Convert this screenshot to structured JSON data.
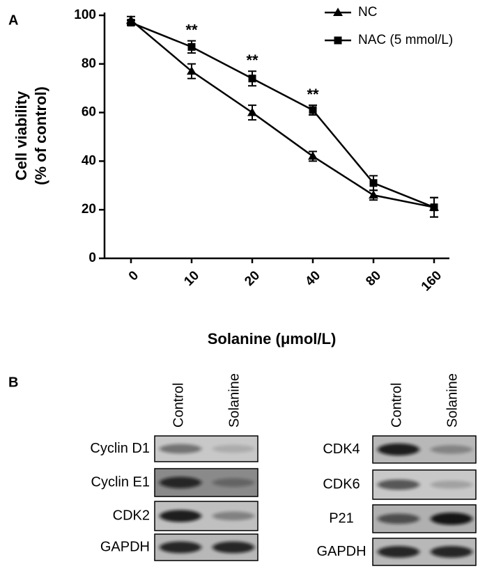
{
  "chart_data": {
    "type": "line",
    "panel_label": "A",
    "xlabel": "Solanine (μmol/L)",
    "ylabel": [
      "Cell viability",
      "(% of control)"
    ],
    "categories": [
      "0",
      "10",
      "20",
      "40",
      "80",
      "160"
    ],
    "series": [
      {
        "name": "NC",
        "color": "#000000",
        "marker": "triangle",
        "values": [
          98,
          77,
          60,
          42,
          26,
          21
        ],
        "errors": [
          1.5,
          3,
          3,
          2,
          2,
          4
        ]
      },
      {
        "name": "NAC (5 mmol/L)",
        "color": "#000000",
        "marker": "square",
        "values": [
          97,
          87,
          74,
          61,
          31,
          21
        ],
        "errors": [
          1,
          2.5,
          3,
          2,
          3,
          4
        ]
      }
    ],
    "significance": [
      null,
      "**",
      "**",
      "**",
      null,
      null
    ],
    "ylim": [
      0,
      100
    ],
    "yticks": [
      0,
      20,
      40,
      60,
      80,
      100
    ],
    "grid": false,
    "legend": "upper right"
  },
  "blots": {
    "panel_label": "B",
    "left": {
      "columns": [
        "Control",
        "Solanine"
      ],
      "rows": [
        "Cyclin D1",
        "Cyclin E1",
        "CDK2",
        "GAPDH"
      ]
    },
    "right": {
      "columns": [
        "Control",
        "Solanine"
      ],
      "rows": [
        "CDK4",
        "CDK6",
        "P21",
        "GAPDH"
      ]
    }
  }
}
